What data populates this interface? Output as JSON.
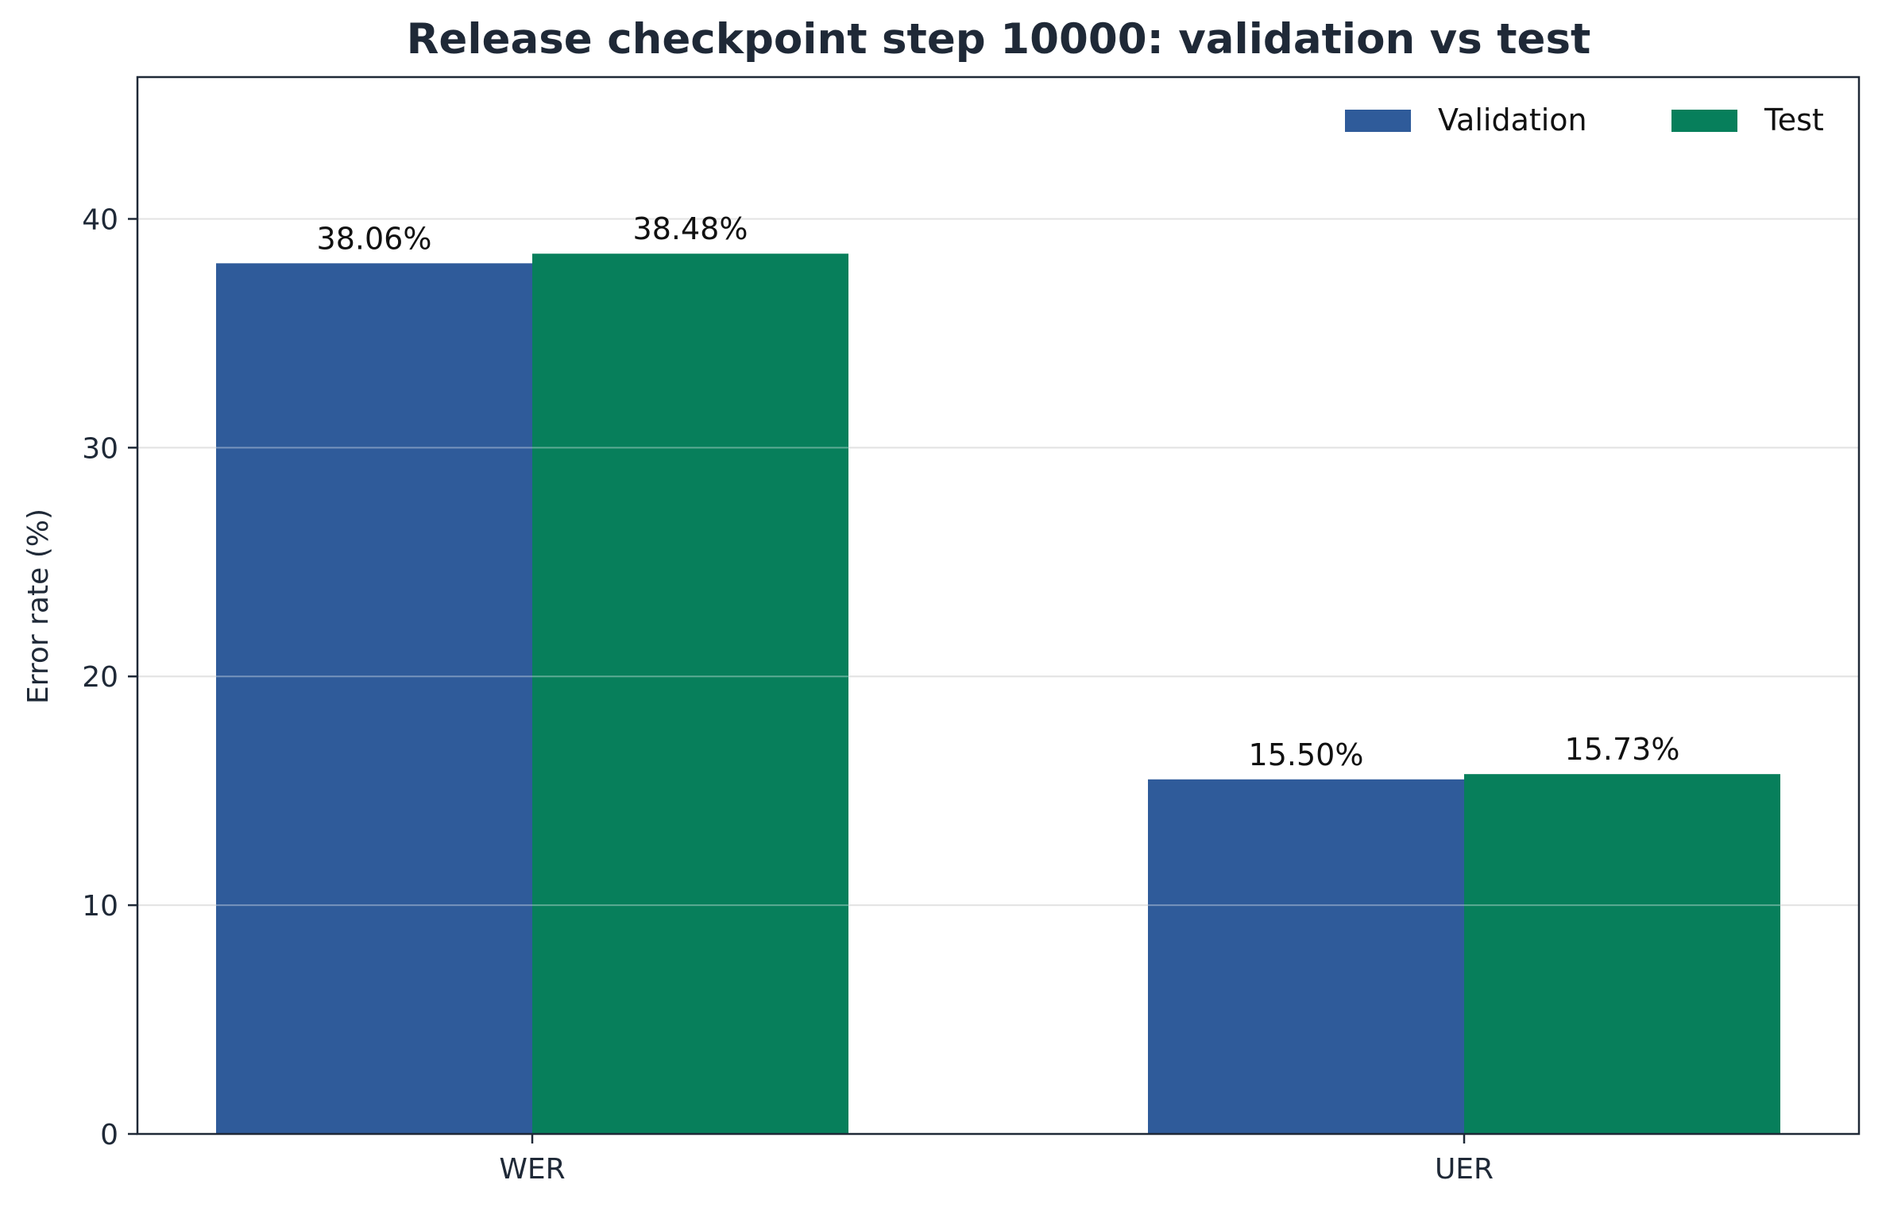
{
  "chart_data": {
    "type": "bar",
    "title": "Release checkpoint step 10000: validation vs test",
    "xlabel": "",
    "ylabel": "Error rate (%)",
    "categories": [
      "WER",
      "UER"
    ],
    "series": [
      {
        "name": "Validation",
        "color": "#2f5b9a",
        "values": [
          38.06,
          15.5
        ],
        "labels": [
          "38.06%",
          "15.50%"
        ]
      },
      {
        "name": "Test",
        "color": "#077f5b",
        "values": [
          38.48,
          15.73
        ],
        "labels": [
          "38.48%",
          "15.73%"
        ]
      }
    ],
    "ylim": [
      0,
      46.2
    ],
    "yticks": [
      0,
      10,
      20,
      30,
      40
    ],
    "grid": true,
    "legend": "top-right"
  }
}
